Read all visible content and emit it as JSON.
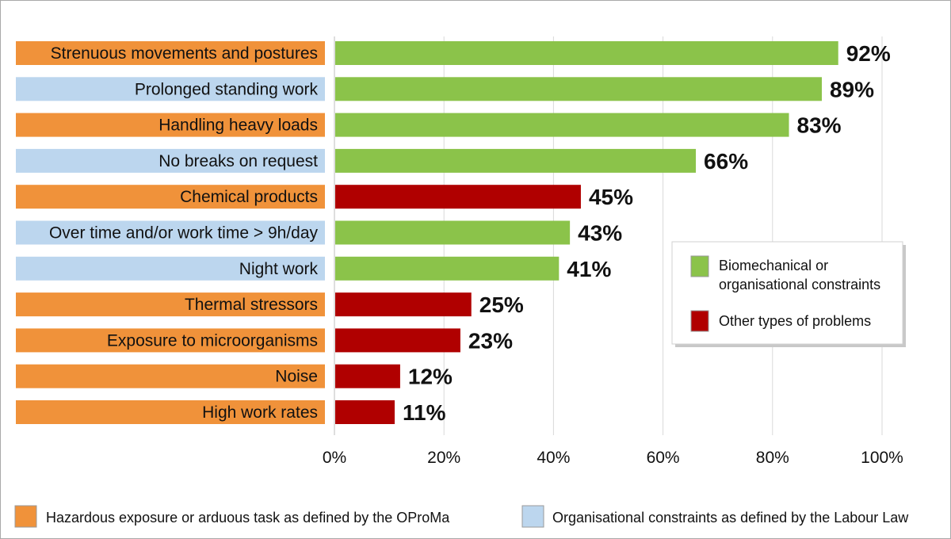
{
  "chart_data": {
    "type": "bar",
    "orientation": "horizontal",
    "categories": [
      "Strenuous movements and postures",
      "Prolonged standing work",
      "Handling heavy loads",
      "No breaks on request",
      "Chemical products",
      "Over time and/or work time > 9h/day",
      "Night work",
      "Thermal stressors",
      "Exposure to microorganisms",
      "Noise",
      "High work rates"
    ],
    "values": [
      92,
      89,
      83,
      66,
      45,
      43,
      41,
      25,
      23,
      12,
      11
    ],
    "value_labels": [
      "92%",
      "89%",
      "83%",
      "66%",
      "45%",
      "43%",
      "41%",
      "25%",
      "23%",
      "12%",
      "11%"
    ],
    "bar_group": [
      "biomech",
      "biomech",
      "biomech",
      "biomech",
      "other",
      "biomech",
      "biomech",
      "other",
      "other",
      "other",
      "other"
    ],
    "label_group": [
      "hazard",
      "org",
      "hazard",
      "org",
      "hazard",
      "org",
      "org",
      "hazard",
      "hazard",
      "hazard",
      "hazard"
    ],
    "xlim": [
      0,
      100
    ],
    "x_ticks": [
      0,
      20,
      40,
      60,
      80,
      100
    ],
    "x_tick_labels": [
      "0%",
      "20%",
      "40%",
      "60%",
      "80%",
      "100%"
    ],
    "grid": true,
    "legend": {
      "placement": "right",
      "items": [
        {
          "key": "biomech",
          "lines": [
            "Biomechanical or",
            "organisational constraints"
          ],
          "color": "#8bc34a"
        },
        {
          "key": "other",
          "lines": [
            "Other types of problems"
          ],
          "color": "#b00000"
        }
      ]
    },
    "label_legend": {
      "placement": "bottom",
      "items": [
        {
          "key": "hazard",
          "label": "Hazardous exposure or arduous task as defined by the OProMa",
          "color": "#f0923a"
        },
        {
          "key": "org",
          "label": "Organisational constraints as defined by the Labour Law",
          "color": "#bcd6ee"
        }
      ]
    }
  }
}
